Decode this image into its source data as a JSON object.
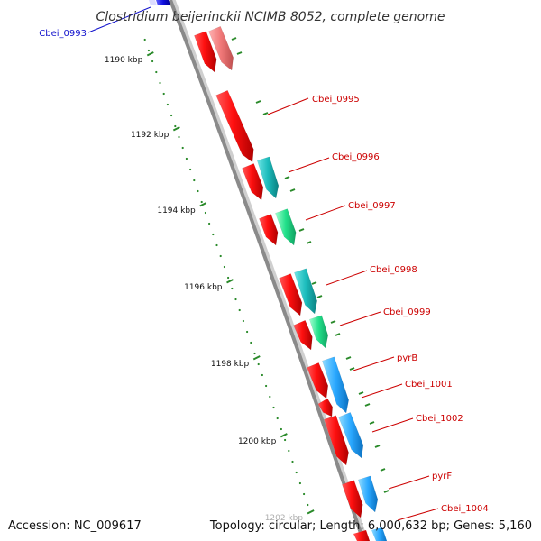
{
  "title": "Clostridium beijerinckii NCIMB 8052, complete genome",
  "footer": {
    "accession": "Accession: NC_009617",
    "summary": "Topology: circular; Length: 6,000,632 bp; Genes: 5,160"
  },
  "colors": {
    "backbone": "#8a8a8a",
    "tick": "#2a8a2a",
    "label_red": "#cc0000",
    "label_blue": "#1010cc",
    "forward_gene": "#ff0000",
    "reverse_gene": "#ff8080",
    "cog_cyan": "#22c0c0",
    "cog_green": "#22e08a",
    "cog_blue": "#2aa8ff"
  },
  "ticks": [
    {
      "label": "1190 kbp"
    },
    {
      "label": "1192 kbp"
    },
    {
      "label": "1194 kbp"
    },
    {
      "label": "1196 kbp"
    },
    {
      "label": "1198 kbp"
    },
    {
      "label": "1200 kbp"
    },
    {
      "label": "1202 kbp"
    }
  ],
  "genes": [
    {
      "name": "Cbei_0993",
      "label_color": "blue"
    },
    {
      "name": "Cbei_0995",
      "label_color": "red"
    },
    {
      "name": "Cbei_0996",
      "label_color": "red"
    },
    {
      "name": "Cbei_0997",
      "label_color": "red"
    },
    {
      "name": "Cbei_0998",
      "label_color": "red"
    },
    {
      "name": "Cbei_0999",
      "label_color": "red"
    },
    {
      "name": "pyrB",
      "label_color": "red"
    },
    {
      "name": "Cbei_1001",
      "label_color": "red"
    },
    {
      "name": "Cbei_1002",
      "label_color": "red"
    },
    {
      "name": "pyrF",
      "label_color": "red"
    },
    {
      "name": "Cbei_1004",
      "label_color": "red"
    }
  ]
}
